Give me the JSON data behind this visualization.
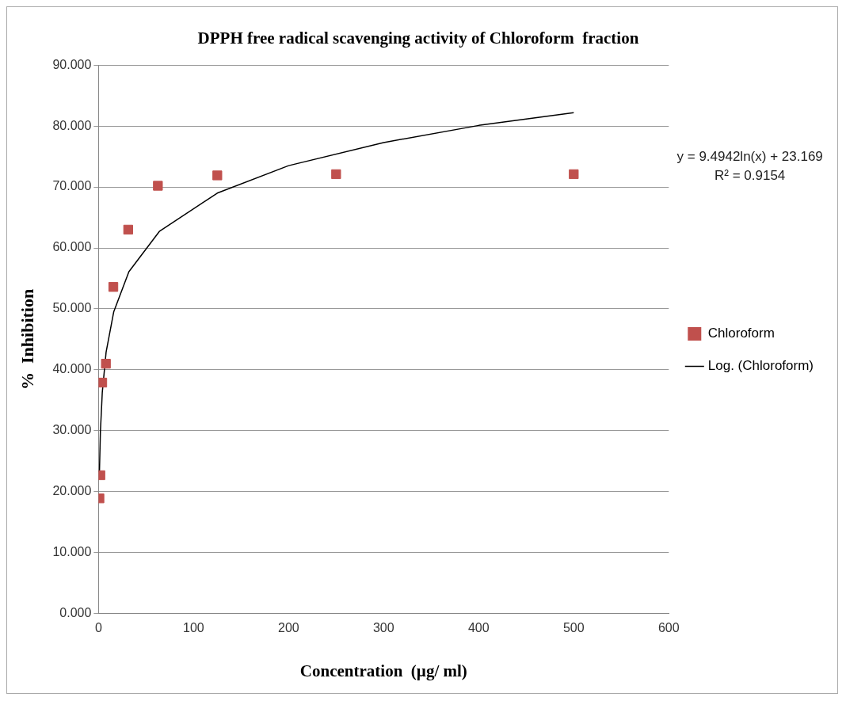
{
  "chart_data": {
    "type": "scatter",
    "title": "DPPH free radical scavenging activity of Chloroform  fraction",
    "xlabel": "Concentration  (µg/ ml)",
    "ylabel": "%  Inhibition",
    "annotations": [
      "y = 9.4942ln(x) + 23.169",
      "R² = 0.9154"
    ],
    "series": [
      {
        "name": "Chloroform",
        "type": "scatter",
        "color": "#c0504d",
        "marker": "square",
        "x": [
          0.98,
          1.95,
          3.9,
          7.8,
          15.6,
          31.25,
          62.5,
          125,
          250,
          500
        ],
        "values": [
          18.9,
          22.7,
          37.9,
          41.0,
          53.6,
          63.0,
          70.2,
          71.9,
          72.1,
          72.1
        ]
      },
      {
        "name": "Log. (Chloroform)",
        "type": "line",
        "color": "#000000",
        "marker": "none",
        "line_style": "solid",
        "x": [
          1,
          2,
          4,
          8,
          16,
          32,
          64,
          125,
          200,
          300,
          400,
          500
        ],
        "values": [
          23.2,
          29.8,
          36.3,
          42.9,
          49.5,
          56.1,
          62.7,
          69.0,
          73.5,
          77.3,
          80.1,
          82.2
        ]
      }
    ],
    "xlim": [
      0,
      600
    ],
    "xticks": [
      0,
      100,
      200,
      300,
      400,
      500,
      600
    ],
    "ylim": [
      0,
      90
    ],
    "yticks": [
      {
        "value": 0,
        "label": "0.000"
      },
      {
        "value": 10,
        "label": "10.000"
      },
      {
        "value": 20,
        "label": "20.000"
      },
      {
        "value": 30,
        "label": "30.000"
      },
      {
        "value": 40,
        "label": "40.000"
      },
      {
        "value": 50,
        "label": "50.000"
      },
      {
        "value": 60,
        "label": "60.000"
      },
      {
        "value": 70,
        "label": "70.000"
      },
      {
        "value": 80,
        "label": "80.000"
      },
      {
        "value": 90,
        "label": "90.000"
      }
    ],
    "grid": "y",
    "legend": "right"
  }
}
